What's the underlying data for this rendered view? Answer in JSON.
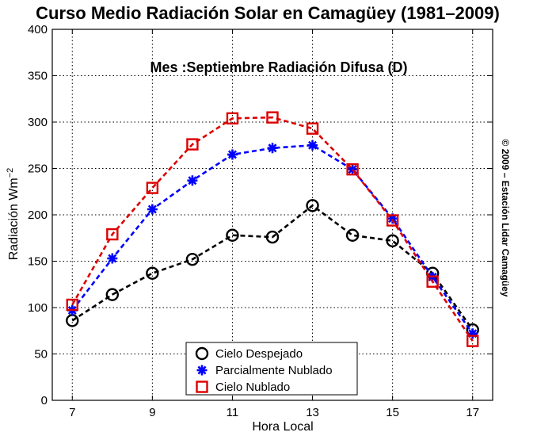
{
  "chart_data": {
    "type": "line",
    "title": "Curso Medio Radiación Solar en Camagüey (1981–2009)",
    "annotation": "Mes :Septiembre    Radiación Difusa (D)",
    "copyright": "© 2009 – Estación Lidar Camagüey",
    "xlabel": "Hora Local",
    "ylabel": "Radiación Wm",
    "ylabel_exponent": "−2",
    "xlim": [
      6.5,
      17.5
    ],
    "ylim": [
      0,
      400
    ],
    "xticks": [
      7,
      9,
      11,
      13,
      15,
      17
    ],
    "yticks": [
      0,
      50,
      100,
      150,
      200,
      250,
      300,
      350,
      400
    ],
    "grid": true,
    "legend_position": "bottom-center",
    "x": [
      7,
      8,
      9,
      10,
      11,
      12,
      13,
      14,
      15,
      16,
      17
    ],
    "series": [
      {
        "name": "Cielo Despejado",
        "marker": "circle",
        "color": "#000000",
        "values": [
          86,
          114,
          137,
          152,
          178,
          176,
          210,
          178,
          172,
          137,
          76
        ]
      },
      {
        "name": "Parcialmente Nublado",
        "marker": "star",
        "color": "#0000ff",
        "values": [
          97,
          153,
          206,
          237,
          265,
          272,
          275,
          249,
          196,
          133,
          72
        ]
      },
      {
        "name": "Cielo Nublado",
        "marker": "square",
        "color": "#dd0000",
        "values": [
          103,
          179,
          229,
          276,
          304,
          305,
          293,
          249,
          194,
          128,
          64
        ]
      }
    ]
  }
}
